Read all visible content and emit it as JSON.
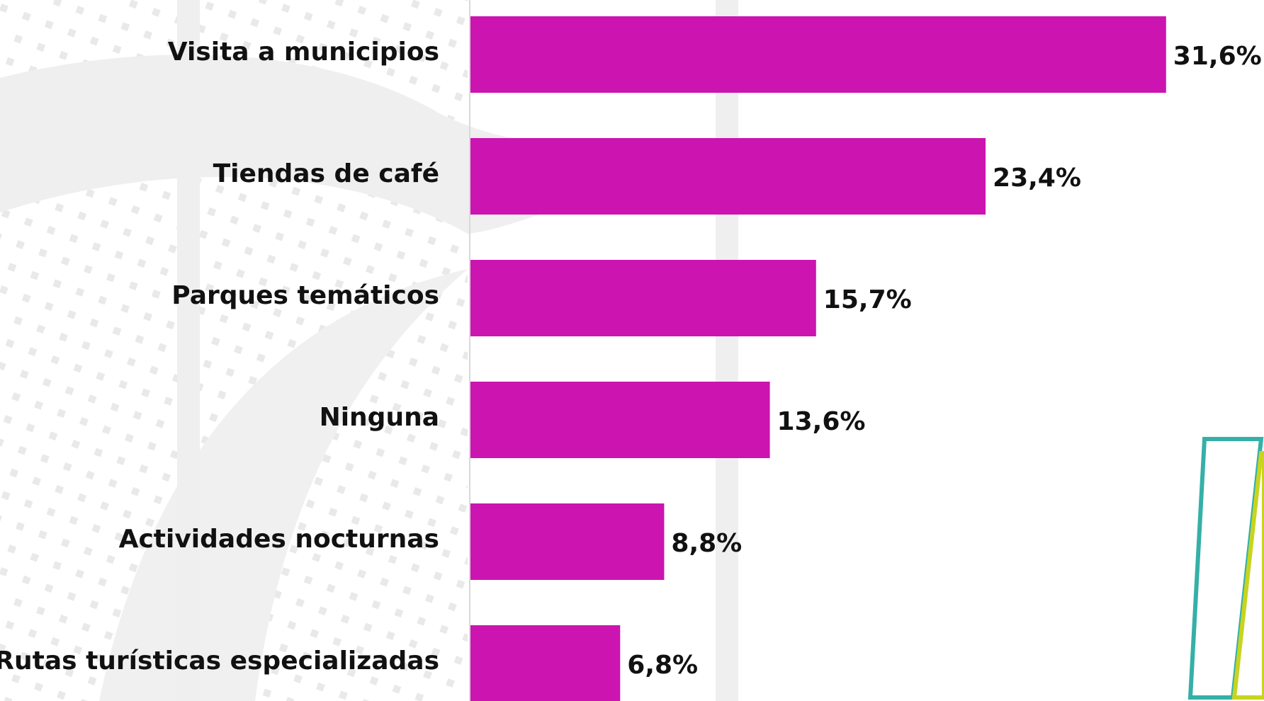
{
  "chart_data": {
    "type": "bar",
    "orientation": "horizontal",
    "categories": [
      "Visita a municipios",
      "Tiendas de café",
      "Parques temáticos",
      "Ninguna",
      "Actividades nocturnas",
      "Rutas turísticas especializadas"
    ],
    "values": [
      31.6,
      23.4,
      15.7,
      13.6,
      8.8,
      6.8
    ],
    "value_labels": [
      "31,6%",
      "23,4%",
      "15,7%",
      "13,6%",
      "8,8%",
      "6,8%"
    ],
    "color": "#cc14b0"
  }
}
